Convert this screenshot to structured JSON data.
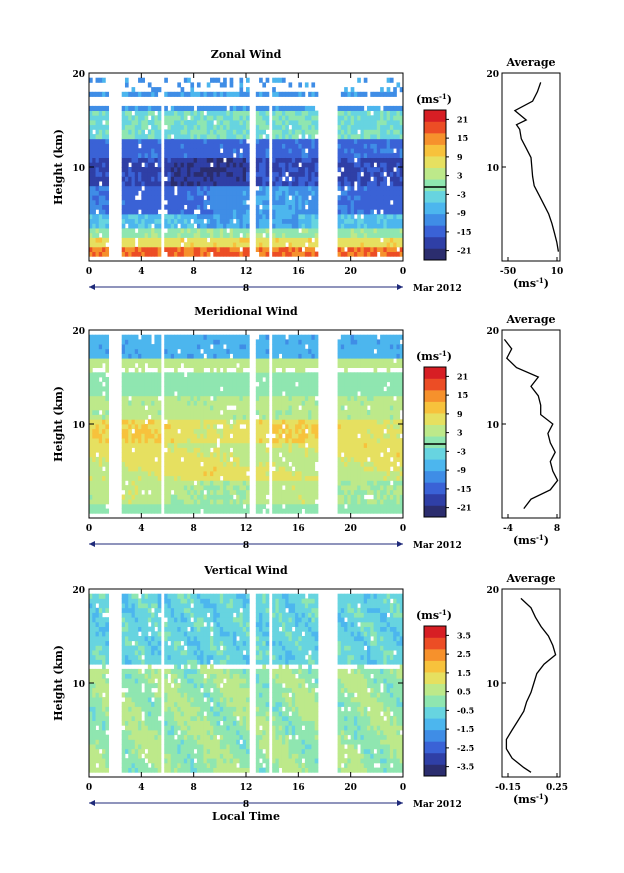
{
  "colors": {
    "scale": [
      "#2b2d6e",
      "#2f3fa6",
      "#3a62d6",
      "#3f8de6",
      "#4cb6ee",
      "#67d4e0",
      "#8fe6b0",
      "#bde98a",
      "#e6e060",
      "#f7c23c",
      "#f6912c",
      "#ec4d25",
      "#d71e24"
    ],
    "frame": "#000000",
    "time_axis": "#1f2a7a"
  },
  "chart_data": [
    {
      "type": "heatmap",
      "title": "Zonal Wind",
      "ylabel": "Height (km)",
      "ylim": [
        0,
        20
      ],
      "yticks": [
        "20",
        "10"
      ],
      "xlim": [
        0,
        24
      ],
      "xticks": [
        "0",
        "4",
        "8",
        "12",
        "16",
        "20",
        "0"
      ],
      "date_label": "8",
      "date_suffix": "Mar 2012",
      "colorbar": {
        "unit": "(ms",
        "unit_sup": "-1",
        "unit_close": ")",
        "ticks": [
          "21",
          "15",
          "9",
          "3",
          "-3",
          "-9",
          "-15",
          "-21"
        ],
        "range": [
          -24,
          24
        ]
      },
      "profile": {
        "title": "Average",
        "xticks": [
          "-50",
          "10"
        ],
        "xlabel": "(ms",
        "xlabel_sup": "-1",
        "xlabel_close": ")",
        "yticks": [
          "20",
          "10"
        ],
        "xlim": [
          -60,
          12
        ],
        "height_km": [
          1.0,
          2.0,
          3.0,
          4.0,
          5.0,
          6.0,
          7.0,
          8.0,
          9.0,
          10.0,
          11.0,
          12.0,
          13.0,
          14.0,
          14.5,
          15.0,
          16.0,
          17.0,
          18.0,
          19.0
        ],
        "speed_ms": [
          10,
          8,
          5,
          2,
          -2,
          -8,
          -14,
          -20,
          -22,
          -23,
          -24,
          -30,
          -36,
          -38,
          -42,
          -30,
          -44,
          -22,
          -16,
          -12
        ]
      }
    },
    {
      "type": "heatmap",
      "title": "Meridional Wind",
      "ylabel": "Height (km)",
      "ylim": [
        0,
        20
      ],
      "yticks": [
        "20",
        "10"
      ],
      "xlim": [
        0,
        24
      ],
      "xticks": [
        "0",
        "4",
        "8",
        "12",
        "16",
        "20",
        "0"
      ],
      "date_label": "8",
      "date_suffix": "Mar 2012",
      "colorbar": {
        "unit": "(ms",
        "unit_sup": "-1",
        "unit_close": ")",
        "ticks": [
          "21",
          "15",
          "9",
          "3",
          "-3",
          "-9",
          "-15",
          "-21"
        ],
        "range": [
          -24,
          24
        ]
      },
      "profile": {
        "title": "Average",
        "xticks": [
          "-4",
          "8"
        ],
        "xlabel": "(ms",
        "xlabel_sup": "-1",
        "xlabel_close": ")",
        "yticks": [
          "20",
          "10"
        ],
        "xlim": [
          -4,
          8
        ],
        "height_km": [
          1.0,
          2.0,
          3.0,
          4.0,
          5.0,
          6.0,
          7.0,
          8.0,
          9.0,
          10.0,
          11.0,
          12.0,
          13.0,
          14.0,
          15.0,
          16.0,
          17.0,
          18.0,
          19.0
        ],
        "speed_ms": [
          0.5,
          2.0,
          6.0,
          7.5,
          6.5,
          6.0,
          7.0,
          6.0,
          5.5,
          6.5,
          4.0,
          4.0,
          3.5,
          2.0,
          3.5,
          -1.0,
          -3.0,
          -2.0,
          -3.5
        ]
      }
    },
    {
      "type": "heatmap",
      "title": "Vertical Wind",
      "ylabel": "Height (km)",
      "xlabel": "Local Time",
      "ylim": [
        0,
        20
      ],
      "yticks": [
        "20",
        "10"
      ],
      "xlim": [
        0,
        24
      ],
      "xticks": [
        "0",
        "4",
        "8",
        "12",
        "16",
        "20",
        "0"
      ],
      "date_label": "8",
      "date_suffix": "Mar 2012",
      "colorbar": {
        "unit": "(ms",
        "unit_sup": "-1",
        "unit_close": ")",
        "ticks": [
          "3.5",
          "2.5",
          "1.5",
          "0.5",
          "-0.5",
          "-1.5",
          "-2.5",
          "-3.5"
        ],
        "range": [
          -4,
          4
        ]
      },
      "profile": {
        "title": "Average",
        "xticks": [
          "-0.15",
          "0.25"
        ],
        "xlabel": "(ms",
        "xlabel_sup": "-1",
        "xlabel_close": ")",
        "yticks": [
          "20",
          "10"
        ],
        "xlim": [
          -0.15,
          0.25
        ],
        "height_km": [
          0.5,
          1.0,
          2.0,
          3.0,
          4.0,
          5.0,
          6.0,
          7.0,
          8.0,
          9.0,
          10.0,
          11.0,
          12.0,
          13.0,
          14.0,
          15.0,
          16.0,
          17.0,
          18.0,
          19.0
        ],
        "speed_ms": [
          0.05,
          0.0,
          -0.08,
          -0.12,
          -0.12,
          -0.08,
          -0.04,
          0.0,
          0.02,
          0.05,
          0.07,
          0.09,
          0.14,
          0.22,
          0.2,
          0.17,
          0.12,
          0.08,
          0.05,
          -0.02
        ]
      }
    }
  ]
}
